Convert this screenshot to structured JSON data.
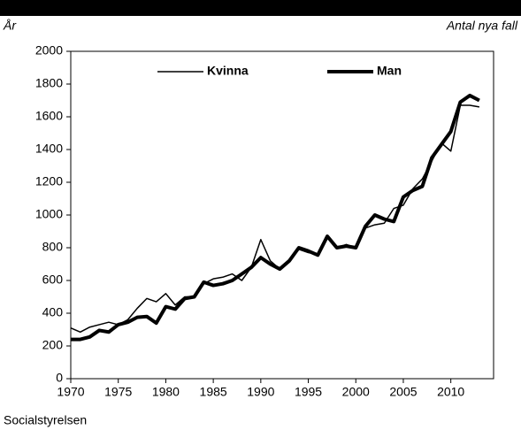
{
  "chart_data": {
    "type": "line",
    "y_label": "År",
    "y_unit_label": "Antal nya fall",
    "source": "Socialstyrelsen",
    "x": [
      1970,
      1971,
      1972,
      1973,
      1974,
      1975,
      1976,
      1977,
      1978,
      1979,
      1980,
      1981,
      1982,
      1983,
      1984,
      1985,
      1986,
      1987,
      1988,
      1989,
      1990,
      1991,
      1992,
      1993,
      1994,
      1995,
      1996,
      1997,
      1998,
      1999,
      2000,
      2001,
      2002,
      2003,
      2004,
      2005,
      2006,
      2007,
      2008,
      2009,
      2010,
      2011,
      2012,
      2013
    ],
    "series": [
      {
        "name": "Kvinna",
        "color": "#000000",
        "width": 1.5,
        "values": [
          310,
          285,
          315,
          330,
          345,
          330,
          360,
          430,
          490,
          470,
          520,
          450,
          500,
          500,
          580,
          610,
          620,
          640,
          600,
          680,
          850,
          720,
          670,
          720,
          790,
          770,
          760,
          860,
          800,
          820,
          800,
          920,
          940,
          950,
          1040,
          1060,
          1160,
          1220,
          1330,
          1440,
          1390,
          1670,
          1670,
          1660
        ]
      },
      {
        "name": "Man",
        "color": "#000000",
        "width": 4,
        "values": [
          240,
          240,
          255,
          295,
          285,
          330,
          345,
          375,
          380,
          340,
          440,
          425,
          490,
          500,
          590,
          570,
          580,
          600,
          640,
          680,
          740,
          700,
          670,
          720,
          800,
          780,
          755,
          870,
          800,
          810,
          800,
          930,
          1000,
          975,
          960,
          1110,
          1150,
          1175,
          1350,
          1430,
          1510,
          1690,
          1730,
          1700
        ]
      }
    ],
    "xlim": [
      1970,
      2014.5
    ],
    "xticks": [
      1970,
      1975,
      1980,
      1985,
      1990,
      1995,
      2000,
      2005,
      2010
    ],
    "ylim": [
      0,
      2000
    ],
    "yticks": [
      0,
      200,
      400,
      600,
      800,
      1000,
      1200,
      1400,
      1600,
      1800,
      2000
    ]
  }
}
